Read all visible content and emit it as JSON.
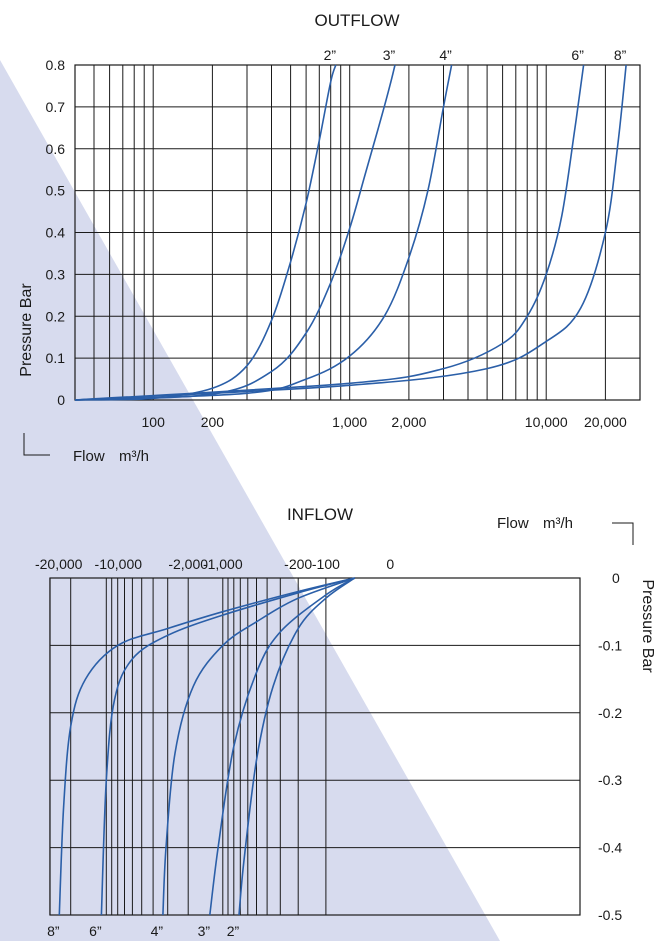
{
  "background": {
    "triangle_color": "#d7dbee"
  },
  "chart_data": [
    {
      "type": "line",
      "title": "OUTFLOW",
      "xlabel": "Flow",
      "xlabel_unit": "m³/h",
      "ylabel": "Pressure Bar",
      "x_scale": "log",
      "xlim": [
        40,
        30000
      ],
      "ylim": [
        0,
        0.8
      ],
      "x_ticks": [
        100,
        200,
        1000,
        2000,
        10000,
        20000
      ],
      "x_tick_labels": [
        "100",
        "200",
        "1,000",
        "2,000",
        "10,000",
        "20,000"
      ],
      "y_ticks": [
        0,
        0.1,
        0.2,
        0.3,
        0.4,
        0.5,
        0.6,
        0.7,
        0.8
      ],
      "y_tick_labels": [
        "0",
        "0.1",
        "0.2",
        "0.3",
        "0.4",
        "0.5",
        "0.6",
        "0.7",
        "0.8"
      ],
      "line_color": "#2b5fa8",
      "series": [
        {
          "name": "2”",
          "x": [
            40,
            100,
            200,
            300,
            400,
            500,
            600,
            700,
            800,
            850
          ],
          "y": [
            0,
            0.004,
            0.028,
            0.082,
            0.19,
            0.33,
            0.47,
            0.62,
            0.76,
            0.8
          ]
        },
        {
          "name": "3”",
          "x": [
            40,
            200,
            400,
            600,
            800,
            1000,
            1200,
            1400,
            1600,
            1700
          ],
          "y": [
            0,
            0.014,
            0.068,
            0.16,
            0.28,
            0.41,
            0.54,
            0.65,
            0.75,
            0.8
          ]
        },
        {
          "name": "4”",
          "x": [
            40,
            300,
            600,
            1000,
            1500,
            2000,
            2500,
            3000,
            3300
          ],
          "y": [
            0,
            0.016,
            0.05,
            0.105,
            0.2,
            0.34,
            0.5,
            0.7,
            0.8
          ]
        },
        {
          "name": "6”",
          "x": [
            40,
            1000,
            3000,
            6000,
            8000,
            10000,
            12000,
            14000,
            15500
          ],
          "y": [
            0,
            0.04,
            0.075,
            0.135,
            0.2,
            0.3,
            0.44,
            0.65,
            0.8
          ]
        },
        {
          "name": "8”",
          "x": [
            40,
            1000,
            5000,
            10000,
            15000,
            20000,
            23000,
            25500
          ],
          "y": [
            0,
            0.035,
            0.075,
            0.14,
            0.22,
            0.4,
            0.6,
            0.8
          ]
        }
      ]
    },
    {
      "type": "line",
      "title": "INFLOW",
      "xlabel": "Flow",
      "xlabel_unit": "m³/h",
      "ylabel": "Pressure Bar",
      "x_scale": "log (negative flow)",
      "xlim": [
        -30000,
        0
      ],
      "ylim": [
        -0.5,
        0
      ],
      "x_ticks": [
        -20000,
        -10000,
        -2000,
        -1000,
        -200,
        -100,
        0
      ],
      "x_tick_labels": [
        "-20,000",
        "-10,000",
        "-2,000",
        "-1,000",
        "-200",
        "-100",
        "0"
      ],
      "y_ticks": [
        0,
        -0.1,
        -0.2,
        -0.3,
        -0.4,
        -0.5
      ],
      "y_tick_labels": [
        "0",
        "-0.1",
        "-0.2",
        "-0.3",
        "-0.4",
        "-0.5"
      ],
      "line_color": "#2b5fa8",
      "series": [
        {
          "name": "8”",
          "x": [
            -40,
            -200,
            -1000,
            -3000,
            -8000,
            -15000,
            -20000,
            -23000,
            -25000
          ],
          "y": [
            0,
            -0.02,
            -0.05,
            -0.075,
            -0.1,
            -0.15,
            -0.22,
            -0.34,
            -0.5
          ]
        },
        {
          "name": "6”",
          "x": [
            -40,
            -200,
            -1000,
            -3000,
            -6000,
            -8500,
            -10000,
            -11000
          ],
          "y": [
            0,
            -0.022,
            -0.055,
            -0.085,
            -0.12,
            -0.18,
            -0.3,
            -0.5
          ]
        },
        {
          "name": "4”",
          "x": [
            -40,
            -200,
            -500,
            -1000,
            -1800,
            -2600,
            -3100,
            -3300
          ],
          "y": [
            0,
            -0.03,
            -0.065,
            -0.1,
            -0.16,
            -0.26,
            -0.4,
            -0.5
          ]
        },
        {
          "name": "3”",
          "x": [
            -40,
            -100,
            -300,
            -500,
            -800,
            -1100,
            -1300
          ],
          "y": [
            0,
            -0.025,
            -0.08,
            -0.14,
            -0.25,
            -0.4,
            -0.5
          ]
        },
        {
          "name": "2”",
          "x": [
            -40,
            -100,
            -200,
            -350,
            -500,
            -650,
            -720
          ],
          "y": [
            0,
            -0.03,
            -0.075,
            -0.16,
            -0.27,
            -0.42,
            -0.5
          ]
        }
      ]
    }
  ]
}
